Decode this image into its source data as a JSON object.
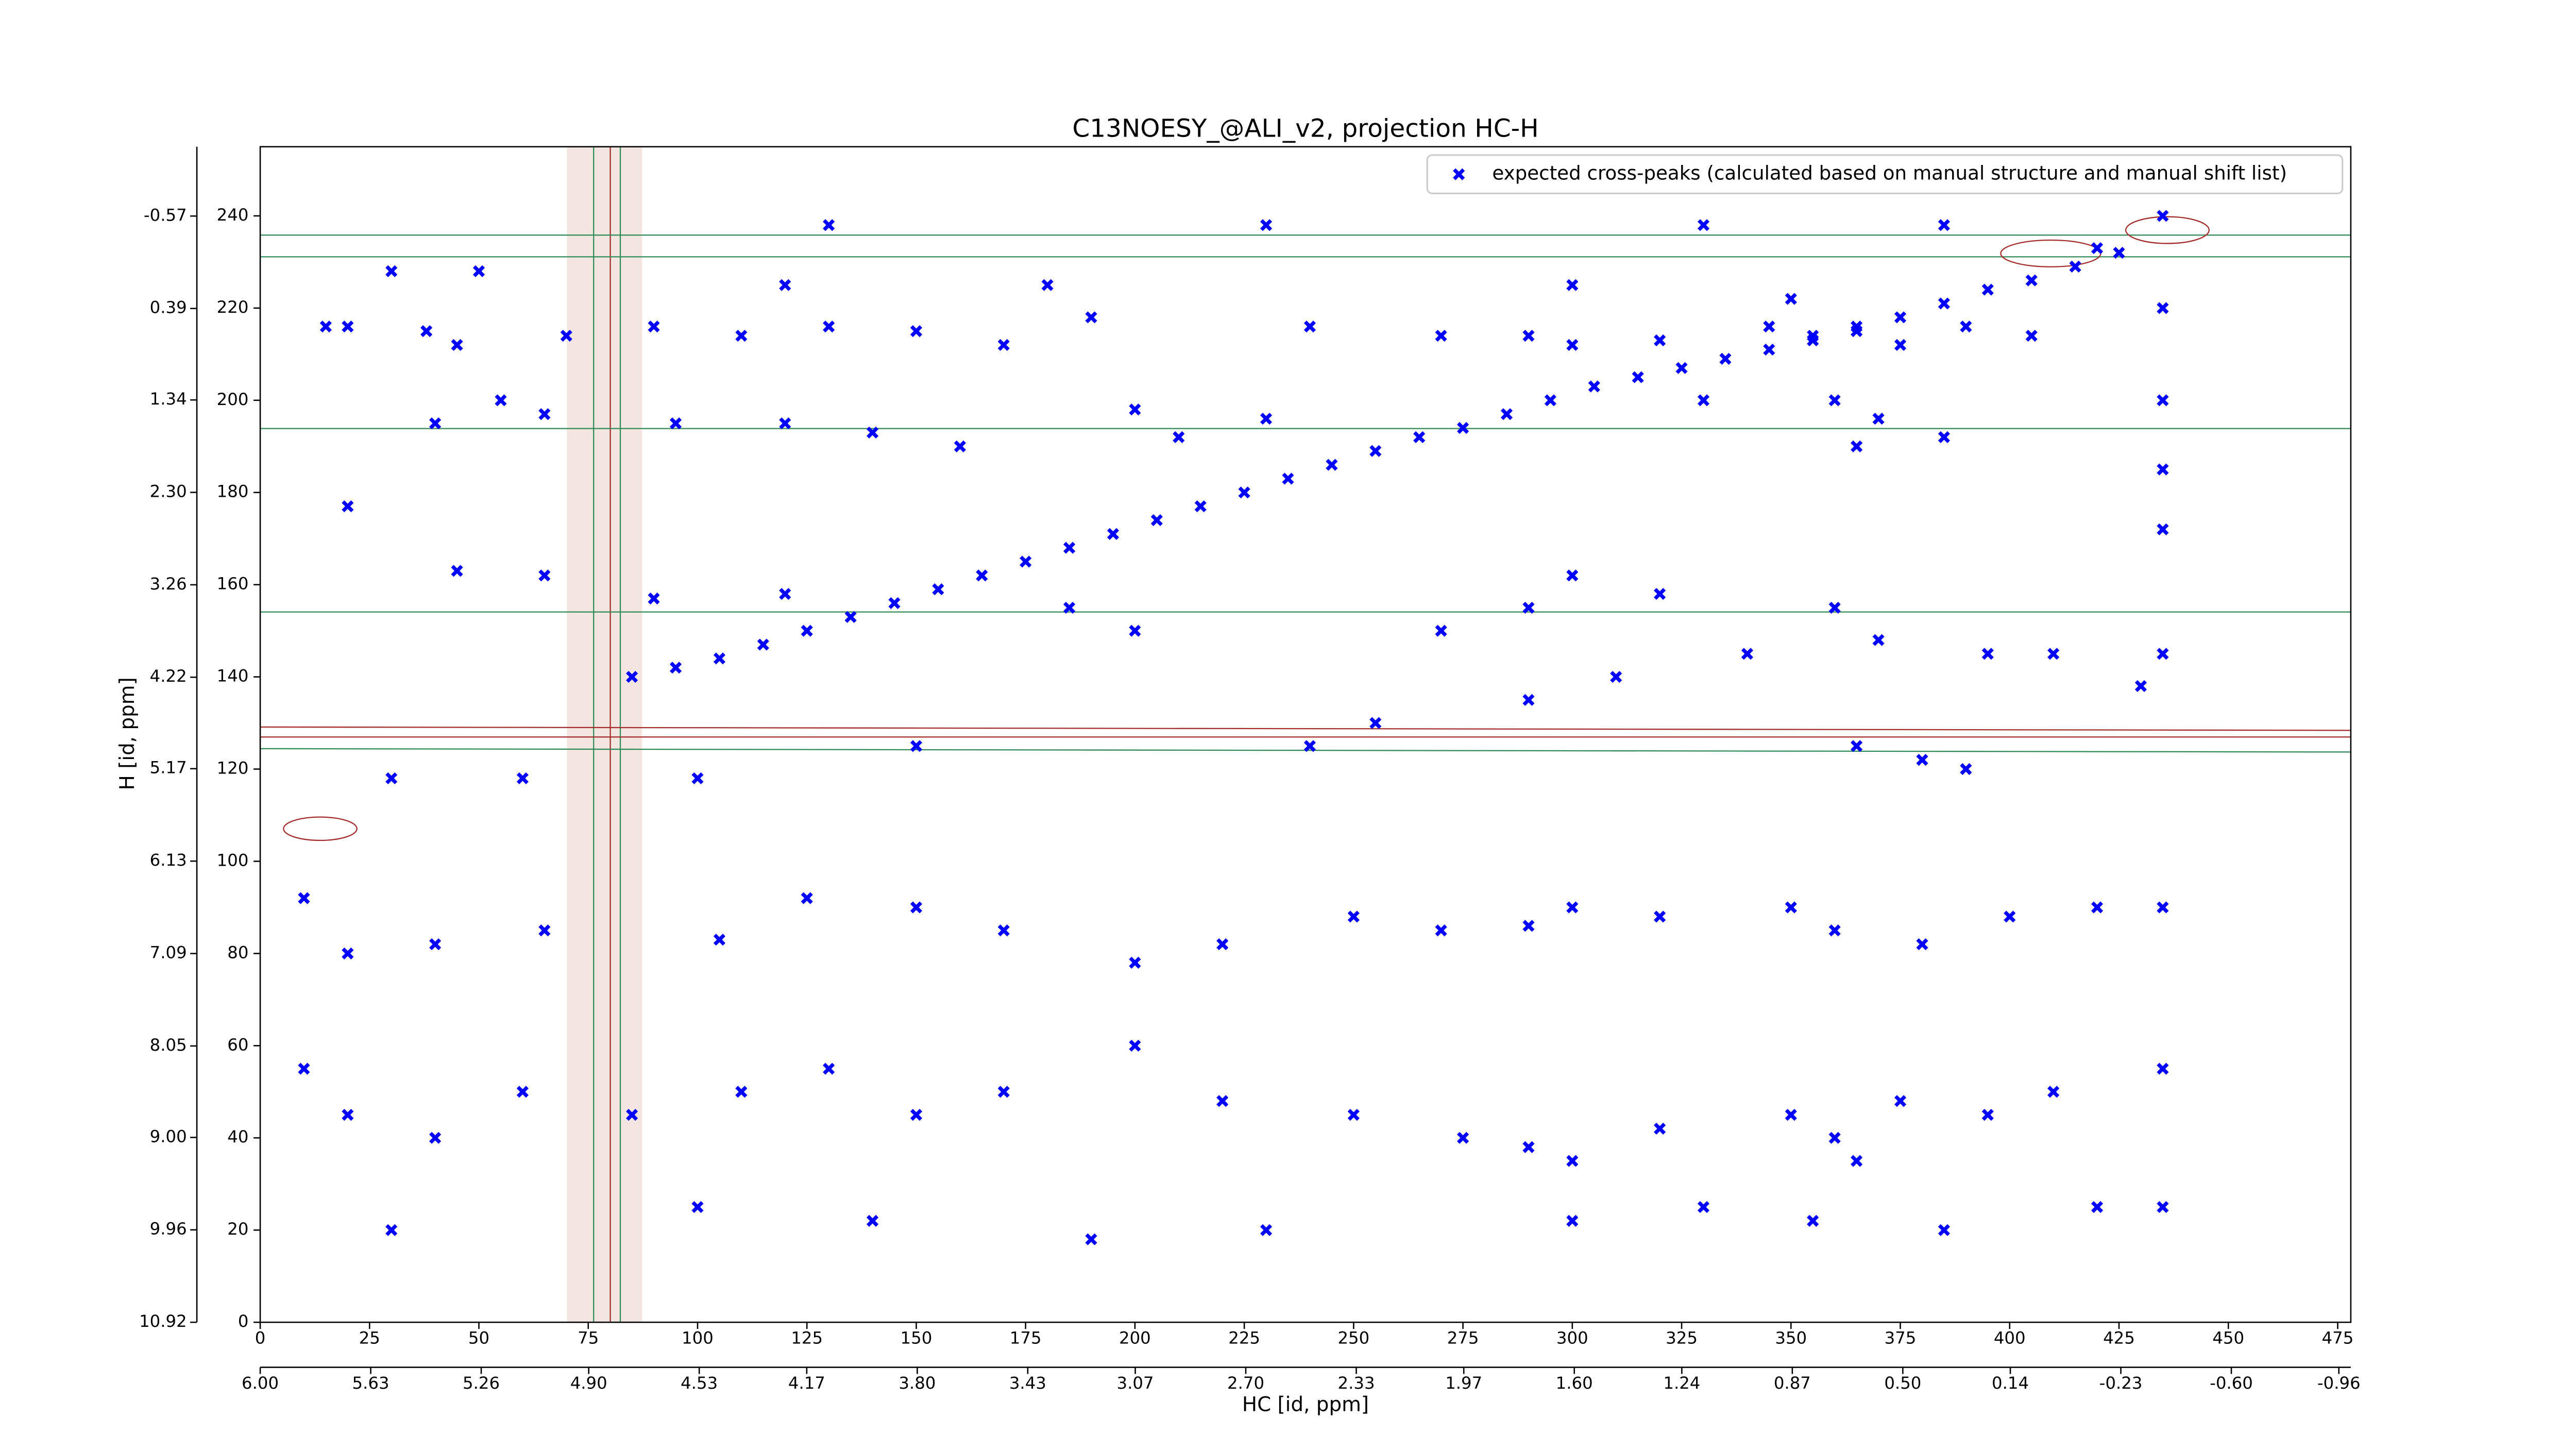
{
  "chart_data": {
    "type": "scatter",
    "title": "C13NOESY_@ALI_v2, projection HC-H",
    "xlabel": "HC [id, ppm]",
    "ylabel": "H [id, ppm]",
    "xlim": [
      0,
      478
    ],
    "xticks": [
      0,
      25,
      50,
      75,
      100,
      125,
      150,
      175,
      200,
      225,
      250,
      275,
      300,
      325,
      350,
      375,
      400,
      425,
      450,
      475
    ],
    "ylim": [
      0,
      255
    ],
    "yticks": [
      0,
      20,
      40,
      60,
      80,
      100,
      120,
      140,
      160,
      180,
      200,
      220,
      240
    ],
    "x2lim": [
      6,
      -1
    ],
    "x2ticks": [
      {
        "value": 6,
        "label": "6.00"
      },
      5.63,
      5.26,
      {
        "value": 4.9,
        "label": "4.90"
      },
      4.53,
      4.17,
      {
        "value": 3.8,
        "label": "3.80"
      },
      3.43,
      3.07,
      {
        "value": 2.7,
        "label": "2.70"
      },
      2.33,
      1.97,
      {
        "value": 1.6,
        "label": "1.60"
      },
      1.24,
      0.87,
      {
        "value": 0.5,
        "label": "0.50"
      },
      0.14,
      -0.23,
      {
        "value": -0.6,
        "label": "-0.60"
      },
      -0.96
    ],
    "y2lim": [
      10.92,
      -1.29
    ],
    "y2ticks": [
      -0.57,
      0.39,
      1.34,
      {
        "value": 2.3,
        "label": "2.30"
      },
      3.26,
      4.22,
      5.17,
      6.13,
      7.09,
      8.05,
      {
        "value": 9,
        "label": "9.00"
      },
      9.96,
      10.92
    ],
    "grid": false,
    "legend": "upper right",
    "series": [
      {
        "name": "expected cross-peaks (calculated based on manual structure and manual shift list)",
        "color": "#0000ff",
        "x": [
          85,
          95,
          105,
          115,
          125,
          135,
          145,
          155,
          165,
          175,
          185,
          195,
          205,
          215,
          225,
          235,
          245,
          255,
          265,
          275,
          285,
          295,
          305,
          315,
          325,
          335,
          345,
          355,
          365,
          375,
          385,
          395,
          405,
          415,
          425,
          15,
          20,
          38,
          45,
          70,
          90,
          110,
          130,
          150,
          170,
          190,
          240,
          270,
          290,
          300,
          320,
          345,
          355,
          365,
          375,
          390,
          405,
          40,
          55,
          65,
          95,
          120,
          140,
          160,
          200,
          210,
          230,
          330,
          360,
          365,
          370,
          385,
          20,
          45,
          65,
          90,
          120,
          185,
          200,
          270,
          290,
          300,
          320,
          340,
          360,
          370,
          395,
          410,
          430,
          290,
          310,
          255,
          240,
          150,
          100,
          60,
          30,
          365,
          380,
          390,
          10,
          20,
          40,
          65,
          105,
          125,
          150,
          170,
          200,
          220,
          250,
          270,
          290,
          300,
          320,
          350,
          360,
          380,
          400,
          420,
          435,
          10,
          20,
          40,
          60,
          85,
          110,
          130,
          150,
          170,
          200,
          220,
          250,
          275,
          290,
          300,
          320,
          350,
          360,
          365,
          375,
          395,
          410,
          435,
          30,
          100,
          140,
          190,
          230,
          300,
          330,
          355,
          385,
          420,
          435,
          130,
          230,
          330,
          385,
          435,
          420,
          30,
          50,
          120,
          180,
          300,
          350,
          435,
          435,
          435,
          435,
          435
        ],
        "y": [
          140,
          142,
          144,
          147,
          150,
          153,
          156,
          159,
          162,
          165,
          168,
          171,
          174,
          177,
          180,
          183,
          186,
          189,
          192,
          194,
          197,
          200,
          203,
          205,
          207,
          209,
          211,
          213,
          215,
          218,
          221,
          224,
          226,
          229,
          232,
          216,
          216,
          215,
          212,
          214,
          216,
          214,
          216,
          215,
          212,
          218,
          216,
          214,
          214,
          212,
          213,
          216,
          214,
          216,
          212,
          216,
          214,
          195,
          200,
          197,
          195,
          195,
          193,
          190,
          198,
          192,
          196,
          200,
          200,
          190,
          196,
          192,
          177,
          163,
          162,
          157,
          158,
          155,
          150,
          150,
          155,
          162,
          158,
          145,
          155,
          148,
          145,
          145,
          138,
          135,
          140,
          130,
          125,
          125,
          118,
          118,
          118,
          125,
          122,
          120,
          92,
          80,
          82,
          85,
          83,
          92,
          90,
          85,
          78,
          82,
          88,
          85,
          86,
          90,
          88,
          90,
          85,
          82,
          88,
          90,
          90,
          55,
          45,
          40,
          50,
          45,
          50,
          55,
          45,
          50,
          60,
          48,
          45,
          40,
          38,
          35,
          42,
          45,
          40,
          35,
          48,
          45,
          50,
          55,
          20,
          25,
          22,
          18,
          20,
          22,
          25,
          22,
          20,
          25,
          25,
          238,
          238,
          238,
          238,
          240,
          233,
          228,
          228,
          225,
          225,
          225,
          222,
          220,
          200,
          185,
          172,
          145
        ]
      }
    ]
  }
}
